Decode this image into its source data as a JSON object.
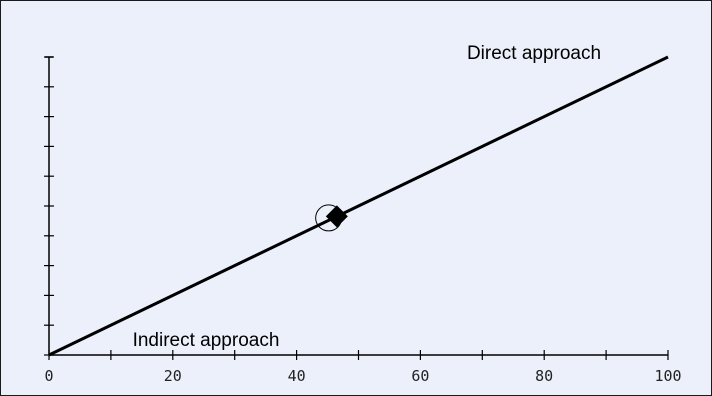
{
  "chart_data": {
    "type": "line",
    "x_ticks": [
      "0",
      "20",
      "40",
      "60",
      "80",
      "100"
    ],
    "xlim": [
      0,
      100
    ],
    "ylim": [
      0,
      10
    ],
    "y_tick_count": 11,
    "y_tick_labels_shown": false,
    "grid": false,
    "series": [
      {
        "x": [
          0,
          100
        ],
        "y": [
          0,
          10
        ]
      }
    ],
    "marker": {
      "x": 46.5,
      "y": 4.65,
      "style": "filled-diamond"
    },
    "marker_ring": {
      "x": 45.5,
      "y": 4.6,
      "style": "open-circle"
    },
    "annotations": {
      "top_right": "Direct approach",
      "bottom_left": "Indirect approach"
    },
    "colors": {
      "background": "#ebf0fa",
      "line": "#000000",
      "frame": "#1a1a1a"
    }
  }
}
